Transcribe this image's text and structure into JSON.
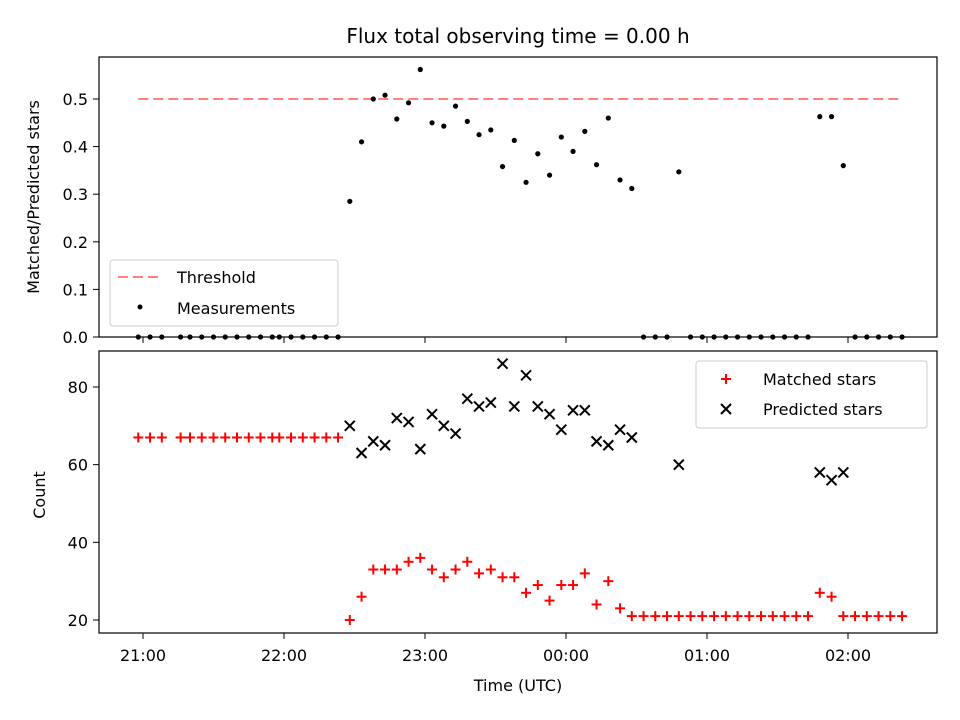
{
  "chart_data": [
    {
      "type": "scatter",
      "title": "Flux total observing time = 0.00 h",
      "ylabel": "Matched/Predicted stars",
      "xlabel": "",
      "ylim": [
        0,
        0.6
      ],
      "yticks": [
        "0.0",
        "0.1",
        "0.2",
        "0.3",
        "0.4",
        "0.5"
      ],
      "grid": false,
      "legend_position": "bottom-left",
      "threshold": {
        "name": "Threshold",
        "value": 0.5,
        "x_start": "20:58",
        "x_end": "02:23",
        "color": "#ff7f7f",
        "style": "dashed"
      },
      "series": [
        {
          "name": "Measurements",
          "color": "#000000",
          "points": [
            [
              "20:58",
              0.0
            ],
            [
              "21:03",
              0.0
            ],
            [
              "21:08",
              0.0
            ],
            [
              "21:16",
              0.0
            ],
            [
              "21:20",
              0.0
            ],
            [
              "21:25",
              0.0
            ],
            [
              "21:30",
              0.0
            ],
            [
              "21:35",
              0.0
            ],
            [
              "21:40",
              0.0
            ],
            [
              "21:45",
              0.0
            ],
            [
              "21:50",
              0.0
            ],
            [
              "21:55",
              0.0
            ],
            [
              "21:58",
              0.0
            ],
            [
              "22:03",
              0.0
            ],
            [
              "22:08",
              0.0
            ],
            [
              "22:13",
              0.0
            ],
            [
              "22:18",
              0.0
            ],
            [
              "22:23",
              0.0
            ],
            [
              "22:28",
              0.285
            ],
            [
              "22:33",
              0.41
            ],
            [
              "22:38",
              0.5
            ],
            [
              "22:43",
              0.508
            ],
            [
              "22:48",
              0.458
            ],
            [
              "22:53",
              0.492
            ],
            [
              "22:58",
              0.562
            ],
            [
              "23:03",
              0.45
            ],
            [
              "23:08",
              0.443
            ],
            [
              "23:13",
              0.485
            ],
            [
              "23:18",
              0.453
            ],
            [
              "23:23",
              0.425
            ],
            [
              "23:28",
              0.435
            ],
            [
              "23:33",
              0.358
            ],
            [
              "23:38",
              0.413
            ],
            [
              "23:43",
              0.325
            ],
            [
              "23:48",
              0.385
            ],
            [
              "23:53",
              0.34
            ],
            [
              "23:58",
              0.42
            ],
            [
              "00:03",
              0.39
            ],
            [
              "00:08",
              0.432
            ],
            [
              "00:13",
              0.362
            ],
            [
              "00:18",
              0.46
            ],
            [
              "00:23",
              0.33
            ],
            [
              "00:28",
              0.312
            ],
            [
              "00:33",
              0.0
            ],
            [
              "00:38",
              0.0
            ],
            [
              "00:43",
              0.0
            ],
            [
              "00:48",
              0.347
            ],
            [
              "00:53",
              0.0
            ],
            [
              "00:58",
              0.0
            ],
            [
              "01:03",
              0.0
            ],
            [
              "01:08",
              0.0
            ],
            [
              "01:13",
              0.0
            ],
            [
              "01:18",
              0.0
            ],
            [
              "01:23",
              0.0
            ],
            [
              "01:28",
              0.0
            ],
            [
              "01:33",
              0.0
            ],
            [
              "01:38",
              0.0
            ],
            [
              "01:43",
              0.0
            ],
            [
              "01:48",
              0.463
            ],
            [
              "01:53",
              0.463
            ],
            [
              "01:58",
              0.36
            ],
            [
              "02:03",
              0.0
            ],
            [
              "02:08",
              0.0
            ],
            [
              "02:13",
              0.0
            ],
            [
              "02:18",
              0.0
            ],
            [
              "02:23",
              0.0
            ]
          ]
        }
      ]
    },
    {
      "type": "scatter",
      "title": "",
      "xlabel": "Time (UTC)",
      "ylabel": "Count",
      "xticks": [
        "21:00",
        "22:00",
        "23:00",
        "00:00",
        "01:00",
        "02:00"
      ],
      "ylim": [
        16,
        90
      ],
      "yticks": [
        "20",
        "40",
        "60",
        "80"
      ],
      "grid": false,
      "legend_position": "top-right",
      "series": [
        {
          "name": "Matched stars",
          "marker": "plus",
          "color": "#ff0000",
          "points": [
            [
              "20:58",
              67
            ],
            [
              "21:03",
              67
            ],
            [
              "21:08",
              67
            ],
            [
              "21:16",
              67
            ],
            [
              "21:20",
              67
            ],
            [
              "21:25",
              67
            ],
            [
              "21:30",
              67
            ],
            [
              "21:35",
              67
            ],
            [
              "21:40",
              67
            ],
            [
              "21:45",
              67
            ],
            [
              "21:50",
              67
            ],
            [
              "21:55",
              67
            ],
            [
              "21:58",
              67
            ],
            [
              "22:03",
              67
            ],
            [
              "22:08",
              67
            ],
            [
              "22:13",
              67
            ],
            [
              "22:18",
              67
            ],
            [
              "22:23",
              67
            ],
            [
              "22:28",
              20
            ],
            [
              "22:33",
              26
            ],
            [
              "22:38",
              33
            ],
            [
              "22:43",
              33
            ],
            [
              "22:48",
              33
            ],
            [
              "22:53",
              35
            ],
            [
              "22:58",
              36
            ],
            [
              "23:03",
              33
            ],
            [
              "23:08",
              31
            ],
            [
              "23:13",
              33
            ],
            [
              "23:18",
              35
            ],
            [
              "23:23",
              32
            ],
            [
              "23:28",
              33
            ],
            [
              "23:33",
              31
            ],
            [
              "23:38",
              31
            ],
            [
              "23:43",
              27
            ],
            [
              "23:48",
              29
            ],
            [
              "23:53",
              25
            ],
            [
              "23:58",
              29
            ],
            [
              "00:03",
              29
            ],
            [
              "00:08",
              32
            ],
            [
              "00:13",
              24
            ],
            [
              "00:18",
              30
            ],
            [
              "00:23",
              23
            ],
            [
              "00:28",
              21
            ],
            [
              "00:33",
              21
            ],
            [
              "00:38",
              21
            ],
            [
              "00:43",
              21
            ],
            [
              "00:48",
              21
            ],
            [
              "00:53",
              21
            ],
            [
              "00:58",
              21
            ],
            [
              "01:03",
              21
            ],
            [
              "01:08",
              21
            ],
            [
              "01:13",
              21
            ],
            [
              "01:18",
              21
            ],
            [
              "01:23",
              21
            ],
            [
              "01:28",
              21
            ],
            [
              "01:33",
              21
            ],
            [
              "01:38",
              21
            ],
            [
              "01:43",
              21
            ],
            [
              "01:48",
              27
            ],
            [
              "01:53",
              26
            ],
            [
              "01:58",
              21
            ],
            [
              "02:03",
              21
            ],
            [
              "02:08",
              21
            ],
            [
              "02:13",
              21
            ],
            [
              "02:18",
              21
            ],
            [
              "02:23",
              21
            ]
          ]
        },
        {
          "name": "Predicted stars",
          "marker": "x",
          "color": "#000000",
          "points": [
            [
              "22:28",
              70
            ],
            [
              "22:33",
              63
            ],
            [
              "22:38",
              66
            ],
            [
              "22:43",
              65
            ],
            [
              "22:48",
              72
            ],
            [
              "22:53",
              71
            ],
            [
              "22:58",
              64
            ],
            [
              "23:03",
              73
            ],
            [
              "23:08",
              70
            ],
            [
              "23:13",
              68
            ],
            [
              "23:18",
              77
            ],
            [
              "23:23",
              75
            ],
            [
              "23:28",
              76
            ],
            [
              "23:33",
              86
            ],
            [
              "23:38",
              75
            ],
            [
              "23:43",
              83
            ],
            [
              "23:48",
              75
            ],
            [
              "23:53",
              73
            ],
            [
              "23:58",
              69
            ],
            [
              "00:03",
              74
            ],
            [
              "00:08",
              74
            ],
            [
              "00:13",
              66
            ],
            [
              "00:18",
              65
            ],
            [
              "00:23",
              69
            ],
            [
              "00:28",
              67
            ],
            [
              "00:48",
              60
            ],
            [
              "01:48",
              58
            ],
            [
              "01:53",
              56
            ],
            [
              "01:58",
              58
            ]
          ]
        }
      ]
    }
  ]
}
